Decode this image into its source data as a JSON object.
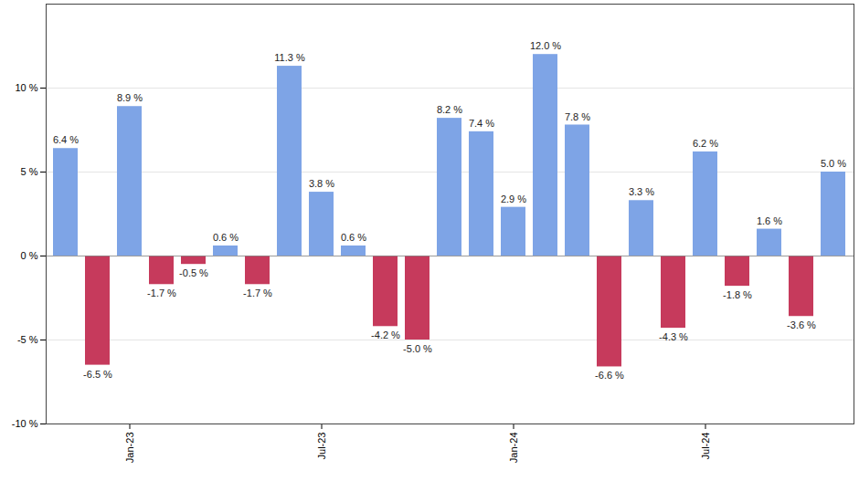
{
  "chart_data": {
    "type": "bar",
    "categories": [
      null,
      null,
      "Jan-23",
      null,
      null,
      null,
      null,
      null,
      "Jul-23",
      null,
      null,
      null,
      null,
      null,
      "Jan-24",
      null,
      null,
      null,
      null,
      null,
      "Jul-24",
      null,
      null,
      null,
      null
    ],
    "values": [
      6.4,
      -6.5,
      8.9,
      -1.7,
      -0.5,
      0.6,
      -1.7,
      11.3,
      3.8,
      0.6,
      -4.2,
      -5.0,
      8.2,
      7.4,
      2.9,
      12.0,
      7.8,
      -6.6,
      3.3,
      -4.3,
      6.2,
      -1.8,
      1.6,
      -3.6,
      5.0
    ],
    "value_labels": [
      "6.4 %",
      "-6.5 %",
      "8.9 %",
      "-1.7 %",
      "-0.5 %",
      "0.6 %",
      "-1.7 %",
      "11.3 %",
      "3.8 %",
      "0.6 %",
      "-4.2 %",
      "-5.0 %",
      "8.2 %",
      "7.4 %",
      "2.9 %",
      "12.0 %",
      "7.8 %",
      "-6.6 %",
      "3.3 %",
      "-4.3 %",
      "6.2 %",
      "-1.8 %",
      "1.6 %",
      "-3.6 %",
      "5.0 %"
    ],
    "colors": [
      "#7ea4e6",
      "#c63a5c",
      "#7ea4e6",
      "#c63a5c",
      "#c63a5c",
      "#7ea4e6",
      "#c63a5c",
      "#7ea4e6",
      "#7ea4e6",
      "#7ea4e6",
      "#c63a5c",
      "#c63a5c",
      "#7ea4e6",
      "#7ea4e6",
      "#7ea4e6",
      "#7ea4e6",
      "#7ea4e6",
      "#c63a5c",
      "#7ea4e6",
      "#c63a5c",
      "#7ea4e6",
      "#c63a5c",
      "#7ea4e6",
      "#c63a5c",
      "#7ea4e6"
    ],
    "ylim": [
      -10,
      15
    ],
    "yticks": [
      {
        "value": -10,
        "label": "-10 %"
      },
      {
        "value": -5,
        "label": "-5 %"
      },
      {
        "value": 0,
        "label": "0 %"
      },
      {
        "value": 5,
        "label": "5 %"
      },
      {
        "value": 10,
        "label": "10 %"
      }
    ],
    "grid": true,
    "data_labels": true
  }
}
